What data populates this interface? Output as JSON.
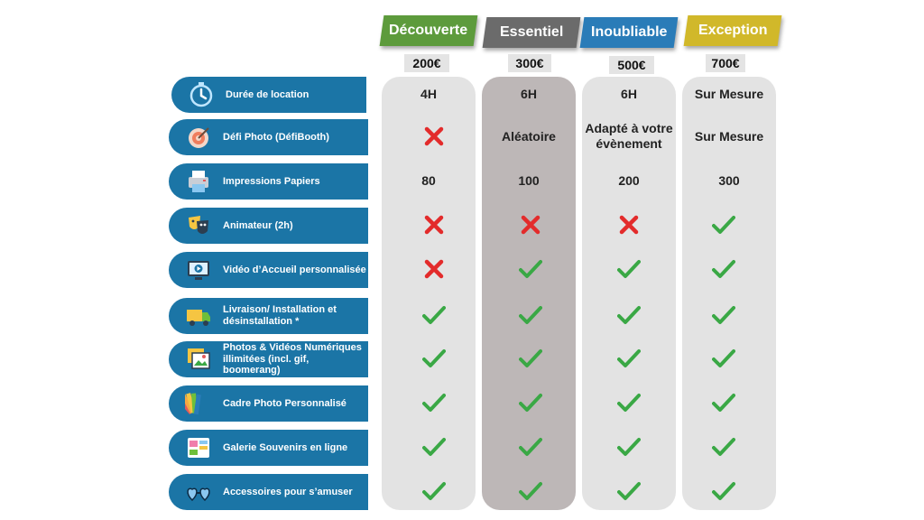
{
  "plans": [
    {
      "name": "Découverte",
      "price": "200€",
      "color": "#5d9b3c"
    },
    {
      "name": "Essentiel",
      "price": "300€",
      "color": "#6b6b6b"
    },
    {
      "name": "Inoubliable",
      "price": "500€",
      "color": "#2a7cb8"
    },
    {
      "name": "Exception",
      "price": "700€",
      "color": "#d1b82a"
    }
  ],
  "features": [
    {
      "label": "Durée de location",
      "icon": "timer-icon",
      "values": [
        "4H",
        "6H",
        "6H",
        "Sur Mesure"
      ]
    },
    {
      "label": "Défi Photo (DéfiBooth)",
      "icon": "target-icon",
      "values": [
        "cross",
        "Aléatoire",
        "Adapté à votre évènement",
        "Sur Mesure"
      ]
    },
    {
      "label": "Impressions Papiers",
      "icon": "printer-icon",
      "values": [
        "80",
        "100",
        "200",
        "300"
      ]
    },
    {
      "label": "Animateur (2h)",
      "icon": "theater-mask-icon",
      "values": [
        "cross",
        "cross",
        "cross",
        "check"
      ]
    },
    {
      "label": "Vidéo d’Accueil personnalisée",
      "icon": "video-screen-icon",
      "values": [
        "cross",
        "check",
        "check",
        "check"
      ]
    },
    {
      "label": "Livraison/ Installation et désinstallation *",
      "icon": "delivery-truck-icon",
      "values": [
        "check",
        "check",
        "check",
        "check"
      ]
    },
    {
      "label": "Photos & Vidéos Numériques illimitées (incl. gif, boomerang)",
      "icon": "photo-gallery-icon",
      "values": [
        "check",
        "check",
        "check",
        "check"
      ]
    },
    {
      "label": "Cadre Photo Personnalisé",
      "icon": "color-palette-icon",
      "values": [
        "check",
        "check",
        "check",
        "check"
      ]
    },
    {
      "label": "Galerie Souvenirs en ligne",
      "icon": "album-icon",
      "values": [
        "check",
        "check",
        "check",
        "check"
      ]
    },
    {
      "label": "Accessoires pour s’amuser",
      "icon": "heart-glasses-icon",
      "values": [
        "check",
        "check",
        "check",
        "check"
      ]
    }
  ],
  "colors": {
    "feature_bg": "#1b75a6",
    "check": "#3aa845",
    "cross": "#e32b2b",
    "col_bg": "#e3e3e3",
    "col_bg_highlight": "#bdb7b7"
  }
}
